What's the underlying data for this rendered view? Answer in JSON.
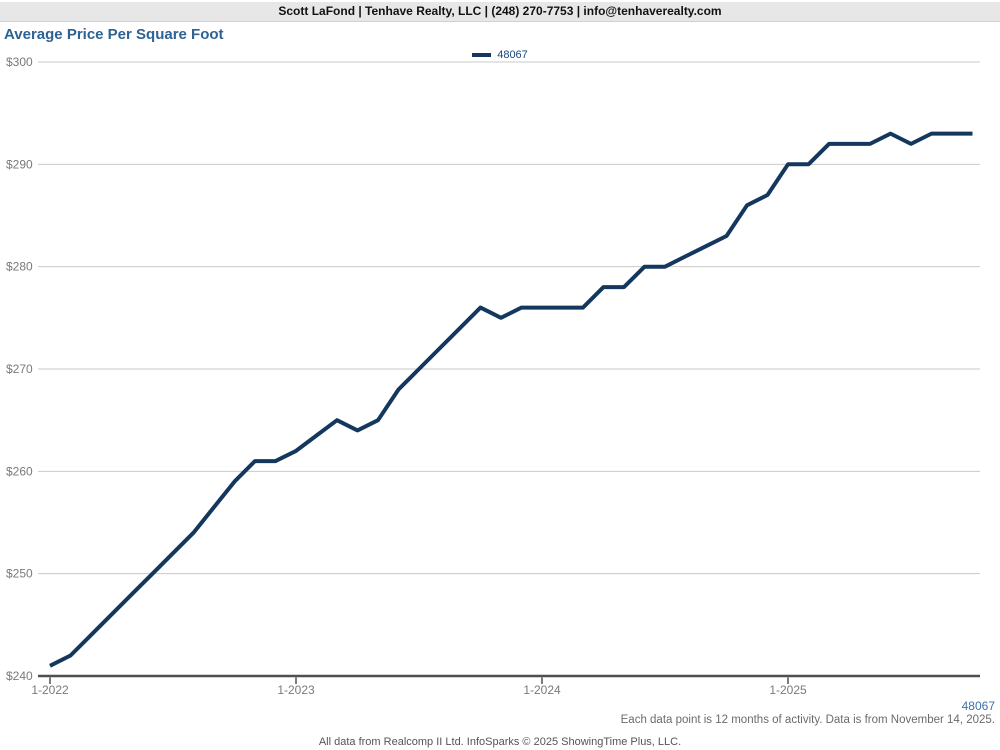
{
  "header": {
    "contact_line": "Scott LaFond | Tenhave Realty, LLC | (248) 270-7753 | info@tenhaverealty.com"
  },
  "title": "Average Price Per Square Foot",
  "legend": {
    "label": "48067"
  },
  "footer": {
    "area_code": "48067",
    "note": "Each data point is 12 months of activity. Data is from November 14, 2025.",
    "attribution": "All data from Realcomp II Ltd. InfoSparks © 2025 ShowingTime Plus, LLC."
  },
  "colors": {
    "line": "#14375e",
    "title_text": "#2e6293",
    "legend_label": "#17477e",
    "grid": "#c9c9c9",
    "axis": "#4f4f4f",
    "tick_label": "#7a7a7a",
    "footer_code": "#3d72aa",
    "note_text": "#6b6b6b",
    "attribution_text": "#545454",
    "header_bg": "#e7e7e7"
  },
  "chart_data": {
    "type": "line",
    "title": "Average Price Per Square Foot",
    "x_start": "2022-01",
    "x_interval": "month",
    "x_end": "2025-10",
    "series": [
      {
        "name": "48067",
        "color": "#14375e",
        "values": [
          241,
          242,
          244,
          246,
          248,
          250,
          252,
          254,
          256.5,
          259,
          261,
          261,
          262,
          263.5,
          265,
          264,
          265,
          268,
          270,
          272,
          274,
          276,
          275,
          276,
          276,
          276,
          276,
          278,
          278,
          280,
          280,
          281,
          282,
          283,
          286,
          287,
          290,
          290,
          292,
          292,
          292,
          293,
          292,
          293,
          293,
          293
        ]
      }
    ],
    "x_tick_labels": [
      "1-2022",
      "1-2023",
      "1-2024",
      "1-2025"
    ],
    "x_tick_month_indices": [
      0,
      12,
      24,
      36
    ],
    "y_ticks": [
      240,
      250,
      260,
      270,
      280,
      290,
      300
    ],
    "y_tick_labels": [
      "$240",
      "$250",
      "$260",
      "$270",
      "$280",
      "$290",
      "$300"
    ],
    "ylim": [
      240,
      300
    ],
    "grid": "horizontal",
    "legend_position": "top-center",
    "ylabel": "",
    "xlabel": ""
  }
}
